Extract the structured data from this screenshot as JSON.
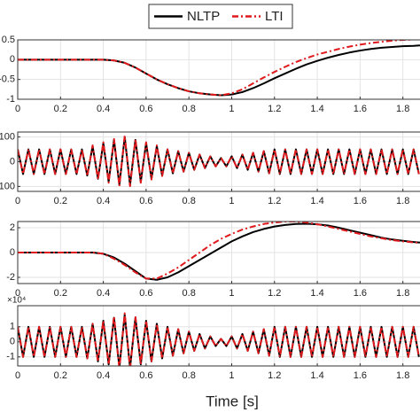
{
  "chart_data": [
    {
      "type": "line",
      "x": [
        0,
        0.05,
        0.1,
        0.15,
        0.2,
        0.25,
        0.3,
        0.35,
        0.4,
        0.45,
        0.5,
        0.55,
        0.6,
        0.65,
        0.7,
        0.75,
        0.8,
        0.85,
        0.9,
        0.95,
        1.0,
        1.05,
        1.1,
        1.15,
        1.2,
        1.25,
        1.3,
        1.35,
        1.4,
        1.45,
        1.5,
        1.55,
        1.6,
        1.65,
        1.7,
        1.75,
        1.8,
        1.85,
        1.88
      ],
      "series": [
        {
          "name": "NLTP",
          "color": "#000000",
          "linestyle": "solid",
          "values": [
            0,
            0,
            0,
            0,
            0,
            0,
            0,
            0,
            0,
            -0.02,
            -0.08,
            -0.2,
            -0.35,
            -0.5,
            -0.62,
            -0.72,
            -0.8,
            -0.85,
            -0.88,
            -0.9,
            -0.88,
            -0.82,
            -0.72,
            -0.6,
            -0.47,
            -0.35,
            -0.23,
            -0.12,
            -0.03,
            0.05,
            0.12,
            0.18,
            0.23,
            0.27,
            0.3,
            0.32,
            0.34,
            0.35,
            0.36
          ]
        },
        {
          "name": "LTI",
          "color": "#e0191c",
          "linestyle": "dashdot",
          "values": [
            0,
            0,
            0,
            0,
            0,
            0,
            0,
            0,
            0,
            -0.02,
            -0.08,
            -0.2,
            -0.35,
            -0.5,
            -0.62,
            -0.72,
            -0.8,
            -0.85,
            -0.88,
            -0.9,
            -0.85,
            -0.75,
            -0.6,
            -0.45,
            -0.31,
            -0.18,
            -0.06,
            0.04,
            0.13,
            0.2,
            0.27,
            0.33,
            0.38,
            0.42,
            0.45,
            0.48,
            0.5,
            0.51,
            0.52
          ]
        }
      ],
      "xlim": [
        0,
        1.88
      ],
      "xticks": [
        0,
        0.2,
        0.4,
        0.6,
        0.8,
        1,
        1.2,
        1.4,
        1.6,
        1.8
      ],
      "ylim": [
        -1,
        0.5
      ],
      "yticks": [
        -1,
        -0.5,
        0,
        0.5
      ],
      "grid": true
    },
    {
      "type": "line",
      "x": [
        0,
        0.025,
        0.05,
        0.075,
        0.1,
        0.125,
        0.15,
        0.175,
        0.2,
        0.225,
        0.25,
        0.275,
        0.3,
        0.325,
        0.35,
        0.375,
        0.4,
        0.425,
        0.45,
        0.475,
        0.5,
        0.525,
        0.55,
        0.575,
        0.6,
        0.625,
        0.65,
        0.675,
        0.7,
        0.725,
        0.75,
        0.775,
        0.8,
        0.825,
        0.85,
        0.875,
        0.9,
        0.925,
        0.95,
        0.975,
        1.0,
        1.025,
        1.05,
        1.075,
        1.1,
        1.125,
        1.15,
        1.175,
        1.2,
        1.225,
        1.25,
        1.275,
        1.3,
        1.325,
        1.35,
        1.375,
        1.4,
        1.425,
        1.45,
        1.475,
        1.5,
        1.525,
        1.55,
        1.575,
        1.6,
        1.625,
        1.65,
        1.675,
        1.7,
        1.725,
        1.75,
        1.775,
        1.8,
        1.825,
        1.85,
        1.875
      ],
      "series": [
        {
          "color": "#000000",
          "linestyle": "solid",
          "values": [
            50,
            -50,
            50,
            -50,
            50,
            -50,
            50,
            -50,
            50,
            -50,
            50,
            -50,
            50,
            -56,
            63,
            -69,
            75,
            -81,
            88,
            -94,
            100,
            -94,
            88,
            -81,
            75,
            -69,
            63,
            -56,
            50,
            -47,
            43,
            -40,
            36,
            -33,
            29,
            -26,
            22,
            -19,
            15,
            -19,
            22,
            -26,
            29,
            -33,
            36,
            -40,
            43,
            -47,
            50,
            -50,
            50,
            -50,
            50,
            -50,
            50,
            -50,
            50,
            -50,
            50,
            -50,
            50,
            -50,
            50,
            -50,
            50,
            -50,
            50,
            -50,
            50,
            -50,
            50,
            -50,
            50,
            -50,
            50,
            -50
          ]
        },
        {
          "color": "#e0191c",
          "linestyle": "dashdot",
          "values": [
            50,
            -50,
            50,
            -50,
            50,
            -50,
            50,
            -50,
            50,
            -50,
            50,
            -50,
            50,
            -58,
            66,
            -72,
            79,
            -85,
            92,
            -99,
            105,
            -99,
            92,
            -85,
            79,
            -72,
            66,
            -58,
            50,
            -47,
            43,
            -40,
            36,
            -33,
            29,
            -26,
            22,
            -19,
            15,
            -19,
            22,
            -26,
            29,
            -33,
            36,
            -40,
            43,
            -47,
            50,
            -50,
            50,
            -50,
            50,
            -50,
            50,
            -50,
            50,
            -50,
            50,
            -50,
            50,
            -50,
            50,
            -50,
            50,
            -50,
            50,
            -50,
            50,
            -50,
            50,
            -50,
            50,
            -50,
            50,
            -50
          ]
        }
      ],
      "xlim": [
        0,
        1.88
      ],
      "xticks": [
        0,
        0.2,
        0.4,
        0.6,
        0.8,
        1,
        1.2,
        1.4,
        1.6,
        1.8
      ],
      "ylim": [
        -120,
        120
      ],
      "yticks": [
        -100,
        0,
        100
      ],
      "grid": true
    },
    {
      "type": "line",
      "x": [
        0,
        0.05,
        0.1,
        0.15,
        0.2,
        0.25,
        0.3,
        0.35,
        0.4,
        0.45,
        0.5,
        0.55,
        0.6,
        0.65,
        0.7,
        0.75,
        0.8,
        0.85,
        0.9,
        0.95,
        1.0,
        1.05,
        1.1,
        1.15,
        1.2,
        1.25,
        1.3,
        1.35,
        1.4,
        1.45,
        1.5,
        1.55,
        1.6,
        1.65,
        1.7,
        1.75,
        1.8,
        1.85,
        1.88
      ],
      "series": [
        {
          "color": "#000000",
          "linestyle": "solid",
          "values": [
            0,
            0,
            0,
            0,
            0,
            0,
            0,
            0,
            -0.1,
            -0.4,
            -0.9,
            -1.5,
            -2.1,
            -2.2,
            -2.0,
            -1.6,
            -1.1,
            -0.6,
            -0.1,
            0.4,
            0.9,
            1.3,
            1.65,
            1.9,
            2.1,
            2.22,
            2.3,
            2.32,
            2.28,
            2.18,
            2.0,
            1.8,
            1.6,
            1.4,
            1.2,
            1.05,
            0.95,
            0.85,
            0.8
          ]
        },
        {
          "color": "#e0191c",
          "linestyle": "dashdot",
          "values": [
            0,
            0,
            0,
            0,
            0,
            0,
            0,
            0,
            -0.1,
            -0.5,
            -1.0,
            -1.6,
            -2.1,
            -2.1,
            -1.7,
            -1.2,
            -0.6,
            0,
            0.6,
            1.1,
            1.5,
            1.85,
            2.1,
            2.3,
            2.42,
            2.5,
            2.5,
            2.42,
            2.28,
            2.1,
            1.9,
            1.7,
            1.5,
            1.3,
            1.15,
            1.0,
            0.9,
            0.82,
            0.78
          ]
        }
      ],
      "xlim": [
        0,
        1.88
      ],
      "xticks": [
        0,
        0.2,
        0.4,
        0.6,
        0.8,
        1,
        1.2,
        1.4,
        1.6,
        1.8
      ],
      "ylim": [
        -2.5,
        2.5
      ],
      "yticks": [
        -2,
        0,
        2
      ],
      "grid": true
    },
    {
      "type": "line",
      "exponent_label": "×10⁴",
      "xlabel": "Time [s]",
      "x": [
        0,
        0.025,
        0.05,
        0.075,
        0.1,
        0.125,
        0.15,
        0.175,
        0.2,
        0.225,
        0.25,
        0.275,
        0.3,
        0.325,
        0.35,
        0.375,
        0.4,
        0.425,
        0.45,
        0.475,
        0.5,
        0.525,
        0.55,
        0.575,
        0.6,
        0.625,
        0.65,
        0.675,
        0.7,
        0.725,
        0.75,
        0.775,
        0.8,
        0.825,
        0.85,
        0.875,
        0.9,
        0.925,
        0.95,
        0.975,
        1.0,
        1.025,
        1.05,
        1.075,
        1.1,
        1.125,
        1.15,
        1.175,
        1.2,
        1.225,
        1.25,
        1.275,
        1.3,
        1.325,
        1.35,
        1.375,
        1.4,
        1.425,
        1.45,
        1.475,
        1.5,
        1.525,
        1.55,
        1.575,
        1.6,
        1.625,
        1.65,
        1.675,
        1.7,
        1.725,
        1.75,
        1.775,
        1.8,
        1.825,
        1.85,
        1.875
      ],
      "series": [
        {
          "color": "#000000",
          "linestyle": "solid",
          "values": [
            1,
            -1,
            1,
            -1,
            1,
            -1,
            1,
            -1,
            1,
            -1,
            1,
            -1,
            1,
            -1.1,
            1.2,
            -1.3,
            1.4,
            -1.5,
            1.6,
            -1.7,
            1.8,
            -1.7,
            1.6,
            -1.5,
            1.4,
            -1.3,
            1.2,
            -1.1,
            1,
            -0.92,
            0.84,
            -0.76,
            0.68,
            -0.6,
            0.52,
            -0.44,
            0.36,
            -0.28,
            0.2,
            -0.28,
            0.36,
            -0.44,
            0.52,
            -0.6,
            0.68,
            -0.76,
            0.84,
            -0.92,
            1,
            -1,
            1,
            -1,
            1,
            -1,
            1,
            -1,
            1,
            -1,
            1,
            -1,
            1,
            -1,
            1,
            -1,
            1,
            -1,
            1,
            -1,
            1,
            -1,
            1,
            -1,
            1,
            -1,
            1,
            -1
          ]
        },
        {
          "color": "#e0191c",
          "linestyle": "dashdot",
          "values": [
            1,
            -1,
            1,
            -1,
            1,
            -1,
            1,
            -1,
            1,
            -1,
            1,
            -1,
            1,
            -1.1,
            1.2,
            -1.3,
            1.4,
            -1.5,
            1.7,
            -1.8,
            1.9,
            -1.8,
            1.7,
            -1.5,
            1.4,
            -1.3,
            1.2,
            -1.1,
            1,
            -0.92,
            0.84,
            -0.76,
            0.68,
            -0.6,
            0.52,
            -0.44,
            0.36,
            -0.28,
            0.2,
            -0.28,
            0.36,
            -0.44,
            0.52,
            -0.6,
            0.68,
            -0.76,
            0.84,
            -0.92,
            1,
            -1,
            1,
            -1,
            1,
            -1,
            1,
            -1,
            1,
            -1,
            1,
            -1,
            1,
            -1,
            1,
            -1,
            1,
            -1,
            1,
            -1,
            1,
            -1,
            1,
            -1,
            1,
            -1,
            1,
            -1
          ]
        }
      ],
      "xlim": [
        0,
        1.88
      ],
      "xticks": [
        0,
        0.2,
        0.4,
        0.6,
        0.8,
        1,
        1.2,
        1.4,
        1.6,
        1.8
      ],
      "ylim": [
        -1.6,
        2.4
      ],
      "yticks": [
        -1,
        0,
        1
      ],
      "grid": true
    }
  ]
}
